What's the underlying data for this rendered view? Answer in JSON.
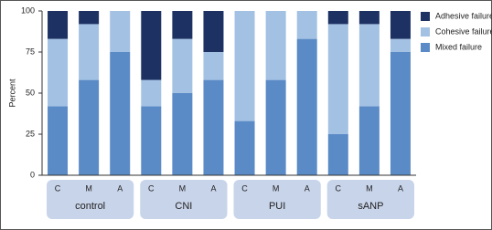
{
  "chart_data": {
    "type": "stacked-bar",
    "y_label": "Percent",
    "categories": [
      "C",
      "M",
      "A",
      "C",
      "M",
      "A",
      "C",
      "M",
      "A",
      "C",
      "M",
      "A"
    ],
    "groups": [
      "control",
      "CNI",
      "PUI",
      "sANP"
    ],
    "series": [
      {
        "name": "Mixed failure",
        "color": "#5b8bc6",
        "values": [
          42,
          58,
          75,
          42,
          50,
          58,
          33,
          58,
          83,
          25,
          42,
          75
        ]
      },
      {
        "name": "Cohesive failure",
        "color": "#a3c1e3",
        "values": [
          41,
          34,
          25,
          16,
          33,
          17,
          67,
          42,
          17,
          67,
          50,
          8
        ]
      },
      {
        "name": "Adhesive failure",
        "color": "#1d3263",
        "values": [
          17,
          8,
          0,
          42,
          17,
          25,
          0,
          0,
          0,
          8,
          8,
          17
        ]
      }
    ],
    "ylim": [
      0,
      100
    ],
    "yticks": [
      0,
      25,
      50,
      75,
      100
    ],
    "grid": false,
    "legend": "top-right"
  }
}
